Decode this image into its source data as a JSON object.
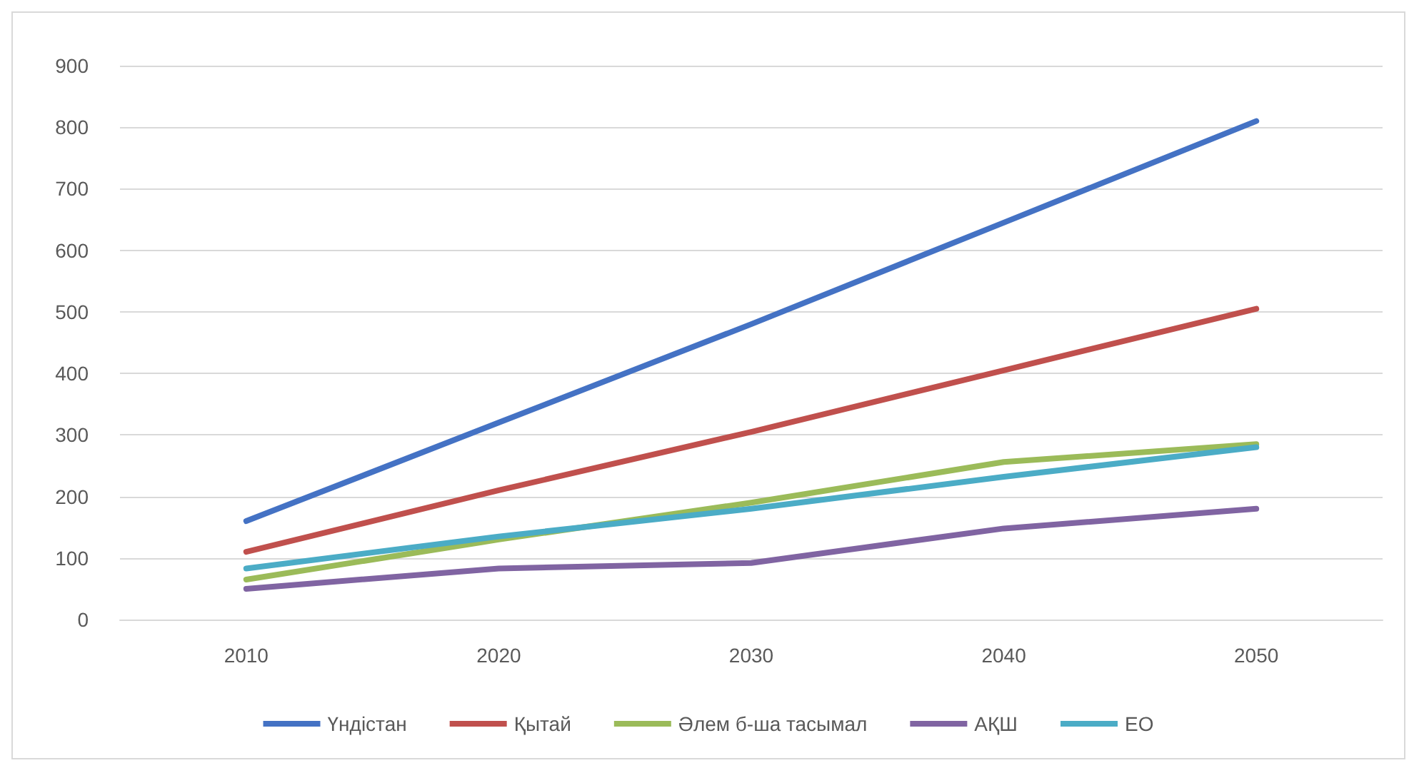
{
  "chart_data": {
    "type": "line",
    "categories": [
      "2010",
      "2020",
      "2030",
      "2040",
      "2050"
    ],
    "series": [
      {
        "name": "Үндістан",
        "color": "#4472c4",
        "values": [
          160,
          320,
          480,
          645,
          810
        ]
      },
      {
        "name": "Қытай",
        "color": "#c0504d",
        "values": [
          110,
          210,
          305,
          405,
          505
        ]
      },
      {
        "name": "Әлем б-ша тасымал",
        "color": "#9bbb59",
        "values": [
          65,
          130,
          190,
          256,
          285
        ]
      },
      {
        "name": "АҚШ",
        "color": "#8064a2",
        "values": [
          50,
          83,
          92,
          148,
          180
        ]
      },
      {
        "name": "ЕО",
        "color": "#4bacc6",
        "values": [
          83,
          135,
          180,
          232,
          280
        ]
      }
    ],
    "ylim": [
      0,
      900
    ],
    "yticks": [
      0,
      100,
      200,
      300,
      400,
      500,
      600,
      700,
      800,
      900
    ],
    "grid": "y",
    "legend": "bottom",
    "marker": "none",
    "line_style": "solid"
  }
}
